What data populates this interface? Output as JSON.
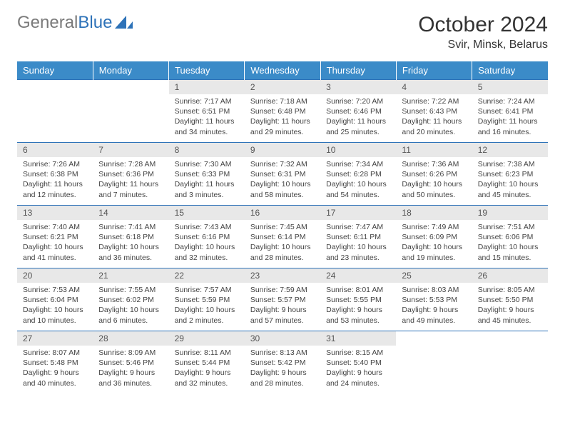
{
  "logo": {
    "text1": "General",
    "text2": "Blue"
  },
  "title": "October 2024",
  "location": "Svir, Minsk, Belarus",
  "colors": {
    "header_bg": "#3b8bc8",
    "header_text": "#ffffff",
    "daynum_bg": "#e8e8e8",
    "row_border": "#2d72b8",
    "logo_gray": "#7a7a7a",
    "logo_blue": "#2d72b8"
  },
  "weekdays": [
    "Sunday",
    "Monday",
    "Tuesday",
    "Wednesday",
    "Thursday",
    "Friday",
    "Saturday"
  ],
  "weeks": [
    [
      null,
      null,
      {
        "n": "1",
        "sr": "7:17 AM",
        "ss": "6:51 PM",
        "dh": "11",
        "dm": "34"
      },
      {
        "n": "2",
        "sr": "7:18 AM",
        "ss": "6:48 PM",
        "dh": "11",
        "dm": "29"
      },
      {
        "n": "3",
        "sr": "7:20 AM",
        "ss": "6:46 PM",
        "dh": "11",
        "dm": "25"
      },
      {
        "n": "4",
        "sr": "7:22 AM",
        "ss": "6:43 PM",
        "dh": "11",
        "dm": "20"
      },
      {
        "n": "5",
        "sr": "7:24 AM",
        "ss": "6:41 PM",
        "dh": "11",
        "dm": "16"
      }
    ],
    [
      {
        "n": "6",
        "sr": "7:26 AM",
        "ss": "6:38 PM",
        "dh": "11",
        "dm": "12"
      },
      {
        "n": "7",
        "sr": "7:28 AM",
        "ss": "6:36 PM",
        "dh": "11",
        "dm": "7"
      },
      {
        "n": "8",
        "sr": "7:30 AM",
        "ss": "6:33 PM",
        "dh": "11",
        "dm": "3"
      },
      {
        "n": "9",
        "sr": "7:32 AM",
        "ss": "6:31 PM",
        "dh": "10",
        "dm": "58"
      },
      {
        "n": "10",
        "sr": "7:34 AM",
        "ss": "6:28 PM",
        "dh": "10",
        "dm": "54"
      },
      {
        "n": "11",
        "sr": "7:36 AM",
        "ss": "6:26 PM",
        "dh": "10",
        "dm": "50"
      },
      {
        "n": "12",
        "sr": "7:38 AM",
        "ss": "6:23 PM",
        "dh": "10",
        "dm": "45"
      }
    ],
    [
      {
        "n": "13",
        "sr": "7:40 AM",
        "ss": "6:21 PM",
        "dh": "10",
        "dm": "41"
      },
      {
        "n": "14",
        "sr": "7:41 AM",
        "ss": "6:18 PM",
        "dh": "10",
        "dm": "36"
      },
      {
        "n": "15",
        "sr": "7:43 AM",
        "ss": "6:16 PM",
        "dh": "10",
        "dm": "32"
      },
      {
        "n": "16",
        "sr": "7:45 AM",
        "ss": "6:14 PM",
        "dh": "10",
        "dm": "28"
      },
      {
        "n": "17",
        "sr": "7:47 AM",
        "ss": "6:11 PM",
        "dh": "10",
        "dm": "23"
      },
      {
        "n": "18",
        "sr": "7:49 AM",
        "ss": "6:09 PM",
        "dh": "10",
        "dm": "19"
      },
      {
        "n": "19",
        "sr": "7:51 AM",
        "ss": "6:06 PM",
        "dh": "10",
        "dm": "15"
      }
    ],
    [
      {
        "n": "20",
        "sr": "7:53 AM",
        "ss": "6:04 PM",
        "dh": "10",
        "dm": "10"
      },
      {
        "n": "21",
        "sr": "7:55 AM",
        "ss": "6:02 PM",
        "dh": "10",
        "dm": "6"
      },
      {
        "n": "22",
        "sr": "7:57 AM",
        "ss": "5:59 PM",
        "dh": "10",
        "dm": "2"
      },
      {
        "n": "23",
        "sr": "7:59 AM",
        "ss": "5:57 PM",
        "dh": "9",
        "dm": "57"
      },
      {
        "n": "24",
        "sr": "8:01 AM",
        "ss": "5:55 PM",
        "dh": "9",
        "dm": "53"
      },
      {
        "n": "25",
        "sr": "8:03 AM",
        "ss": "5:53 PM",
        "dh": "9",
        "dm": "49"
      },
      {
        "n": "26",
        "sr": "8:05 AM",
        "ss": "5:50 PM",
        "dh": "9",
        "dm": "45"
      }
    ],
    [
      {
        "n": "27",
        "sr": "8:07 AM",
        "ss": "5:48 PM",
        "dh": "9",
        "dm": "40"
      },
      {
        "n": "28",
        "sr": "8:09 AM",
        "ss": "5:46 PM",
        "dh": "9",
        "dm": "36"
      },
      {
        "n": "29",
        "sr": "8:11 AM",
        "ss": "5:44 PM",
        "dh": "9",
        "dm": "32"
      },
      {
        "n": "30",
        "sr": "8:13 AM",
        "ss": "5:42 PM",
        "dh": "9",
        "dm": "28"
      },
      {
        "n": "31",
        "sr": "8:15 AM",
        "ss": "5:40 PM",
        "dh": "9",
        "dm": "24"
      },
      null,
      null
    ]
  ],
  "labels": {
    "sunrise": "Sunrise:",
    "sunset": "Sunset:",
    "daylight": "Daylight:",
    "hours": "hours",
    "and": "and",
    "minutes": "minutes."
  }
}
